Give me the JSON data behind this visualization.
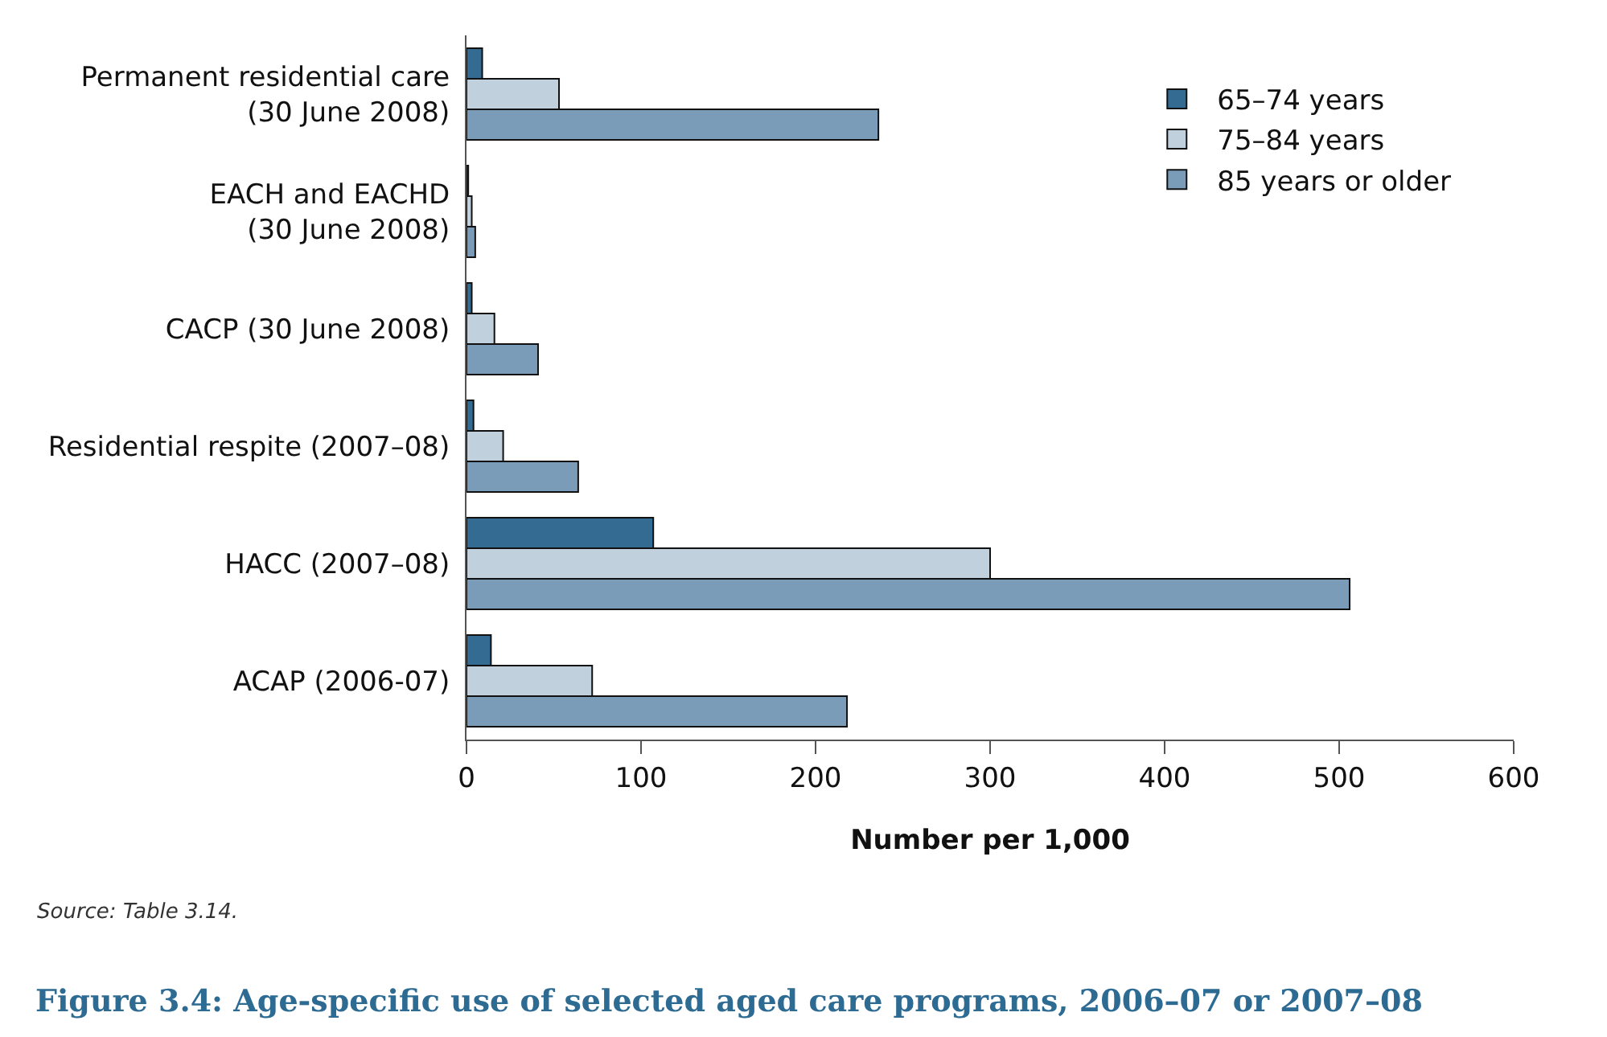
{
  "chart_data": {
    "type": "bar",
    "orientation": "horizontal",
    "title": "Figure 3.4: Age-specific use of selected aged care programs, 2006–07 or 2007–08",
    "xlabel": "Number per 1,000",
    "categories": [
      "Permanent residential care\n(30 June 2008)",
      "EACH and EACHD\n(30 June 2008)",
      "CACP (30 June 2008)",
      "Residential respite (2007–08)",
      "HACC (2007–08)",
      "ACAP (2006-07)"
    ],
    "series": [
      {
        "name": "65–74 years",
        "color": "#336b93",
        "values": [
          9,
          1,
          3,
          4,
          107,
          14
        ]
      },
      {
        "name": "75–84 years",
        "color": "#c0d1dd",
        "values": [
          53,
          3,
          16,
          21,
          300,
          72
        ]
      },
      {
        "name": "85 years or older",
        "color": "#7a9cb8",
        "values": [
          236,
          5,
          41,
          64,
          506,
          218
        ]
      }
    ],
    "xlim": [
      0,
      600
    ],
    "xticks": [
      0,
      100,
      200,
      300,
      400,
      500,
      600
    ],
    "grid": false,
    "legend": "top right",
    "annotations": [
      "Source: Table 3.14."
    ]
  }
}
